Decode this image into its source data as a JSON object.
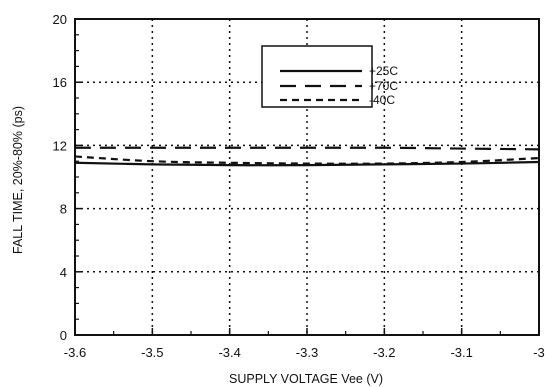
{
  "chart_data": {
    "type": "line",
    "title": "",
    "xlabel": "SUPPLY VOLTAGE Vee (V)",
    "ylabel": "FALL TIME, 20%-80% (ps)",
    "xlim": [
      -3.6,
      -3.0
    ],
    "ylim": [
      0,
      20
    ],
    "x_ticks": [
      -3.6,
      -3.5,
      -3.4,
      -3.3,
      -3.2,
      -3.1,
      -3.0
    ],
    "x_tick_labels": [
      "-3.6",
      "-3.5",
      "-3.4",
      "-3.3",
      "-3.2",
      "-3.1",
      "-3"
    ],
    "y_ticks": [
      0,
      4,
      8,
      12,
      16,
      20
    ],
    "y_tick_labels": [
      "0",
      "4",
      "8",
      "12",
      "16",
      "20"
    ],
    "grid": true,
    "grid_style": "dotted",
    "legend_position": "top-right",
    "series": [
      {
        "name": "+25C",
        "style": "solid",
        "color": "#111111",
        "x": [
          -3.6,
          -3.5,
          -3.4,
          -3.3,
          -3.2,
          -3.1,
          -3.0
        ],
        "y": [
          10.9,
          10.8,
          10.75,
          10.75,
          10.8,
          10.85,
          10.95
        ]
      },
      {
        "name": "+70C",
        "style": "long-dash",
        "color": "#111111",
        "x": [
          -3.6,
          -3.5,
          -3.4,
          -3.3,
          -3.2,
          -3.1,
          -3.0
        ],
        "y": [
          11.85,
          11.85,
          11.85,
          11.85,
          11.85,
          11.8,
          11.75
        ]
      },
      {
        "name": "-40C",
        "style": "short-dash",
        "color": "#111111",
        "x": [
          -3.6,
          -3.5,
          -3.4,
          -3.3,
          -3.2,
          -3.1,
          -3.0
        ],
        "y": [
          11.3,
          11.0,
          10.9,
          10.85,
          10.85,
          10.95,
          11.2
        ]
      }
    ]
  }
}
